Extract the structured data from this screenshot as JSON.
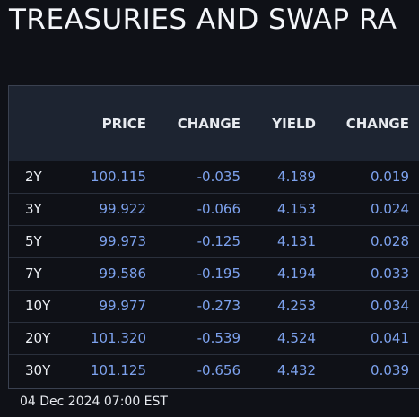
{
  "title": "TREASURIES AND SWAP RA",
  "table": {
    "headers": [
      "",
      "PRICE",
      "CHANGE",
      "YIELD",
      "CHANGE"
    ],
    "rows": [
      {
        "tenor": "2Y",
        "price": "100.115",
        "price_change": "-0.035",
        "yield": "4.189",
        "yield_change": "0.019"
      },
      {
        "tenor": "3Y",
        "price": "99.922",
        "price_change": "-0.066",
        "yield": "4.153",
        "yield_change": "0.024"
      },
      {
        "tenor": "5Y",
        "price": "99.973",
        "price_change": "-0.125",
        "yield": "4.131",
        "yield_change": "0.028"
      },
      {
        "tenor": "7Y",
        "price": "99.586",
        "price_change": "-0.195",
        "yield": "4.194",
        "yield_change": "0.033"
      },
      {
        "tenor": "10Y",
        "price": "99.977",
        "price_change": "-0.273",
        "yield": "4.253",
        "yield_change": "0.034"
      },
      {
        "tenor": "20Y",
        "price": "101.320",
        "price_change": "-0.539",
        "yield": "4.524",
        "yield_change": "0.041"
      },
      {
        "tenor": "30Y",
        "price": "101.125",
        "price_change": "-0.656",
        "yield": "4.432",
        "yield_change": "0.039"
      }
    ]
  },
  "timestamp": "04 Dec 2024 07:00 EST",
  "colors": {
    "background": "#0f1117",
    "header_background": "#1d2431",
    "value_text": "#7da2ee",
    "label_text": "#eef1f6"
  }
}
